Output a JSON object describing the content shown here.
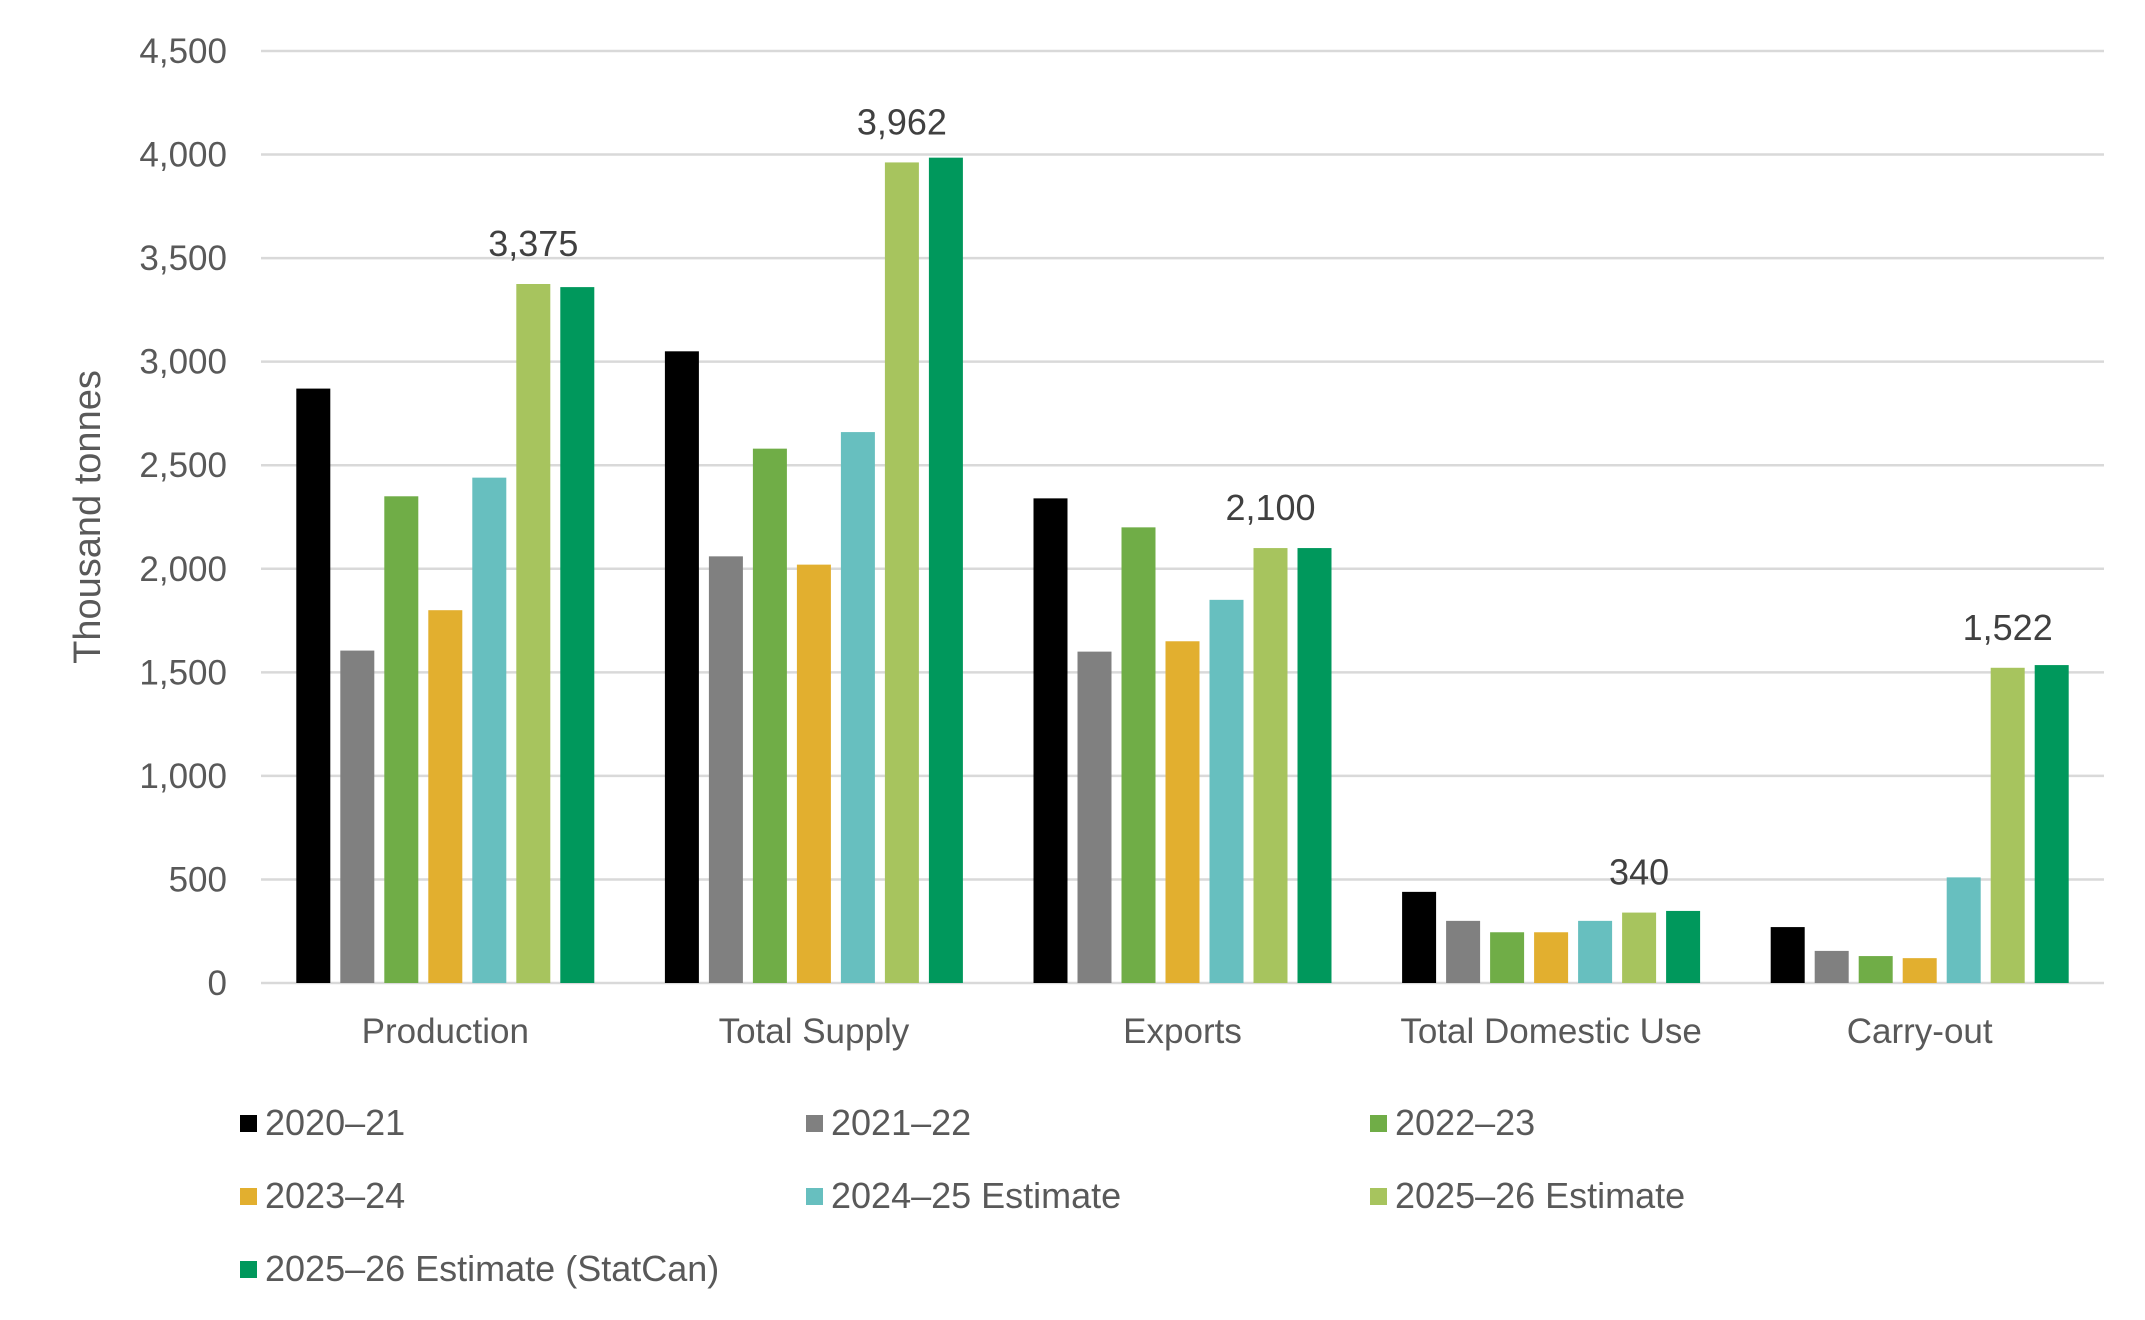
{
  "chart_data": {
    "type": "bar",
    "title": "",
    "xlabel": "",
    "ylabel": "Thousand tonnes",
    "ylim": [
      0,
      4500
    ],
    "ytick_step": 500,
    "yticks": [
      "0",
      "500",
      "1,000",
      "1,500",
      "2,000",
      "2,500",
      "3,000",
      "3,500",
      "4,000",
      "4,500"
    ],
    "grid": true,
    "legend_position": "bottom",
    "categories": [
      "Production",
      "Total Supply",
      "Exports",
      "Total Domestic Use",
      "Carry-out"
    ],
    "series": [
      {
        "name": "2020–21",
        "color": "#000000",
        "values": [
          2870,
          3050,
          2340,
          440,
          270
        ]
      },
      {
        "name": "2021–22",
        "color": "#808080",
        "values": [
          1605,
          2060,
          1600,
          300,
          155
        ]
      },
      {
        "name": "2022–23",
        "color": "#70AD47",
        "values": [
          2350,
          2580,
          2200,
          245,
          130
        ]
      },
      {
        "name": "2023–24",
        "color": "#E2AF2F",
        "values": [
          1800,
          2020,
          1650,
          245,
          120
        ]
      },
      {
        "name": "2024–25 Estimate",
        "color": "#67BFBF",
        "values": [
          2440,
          2660,
          1850,
          300,
          510
        ]
      },
      {
        "name": "2025–26 Estimate",
        "color": "#A7C45E",
        "values": [
          3375,
          3962,
          2100,
          340,
          1522
        ]
      },
      {
        "name": "2025–26 Estimate (StatCan)",
        "color": "#00985C",
        "values": [
          3360,
          3985,
          2100,
          348,
          1535
        ]
      }
    ],
    "data_labels": [
      {
        "series": "2025–26 Estimate",
        "category": "Production",
        "text": "3,375"
      },
      {
        "series": "2025–26 Estimate",
        "category": "Total Supply",
        "text": "3,962"
      },
      {
        "series": "2025–26 Estimate",
        "category": "Exports",
        "text": "2,100"
      },
      {
        "series": "2025–26 Estimate",
        "category": "Total Domestic Use",
        "text": "340"
      },
      {
        "series": "2025–26 Estimate",
        "category": "Carry-out",
        "text": "1,522"
      }
    ]
  }
}
